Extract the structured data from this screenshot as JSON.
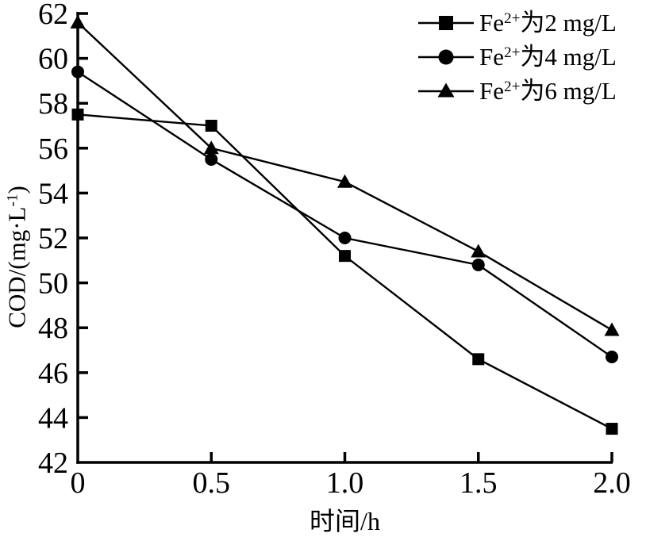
{
  "figure": {
    "background": "#ffffff",
    "ink_color": "#000000"
  },
  "axes": {
    "x_title": "时间/h",
    "y_title": {
      "pre": "COD/(mg·L",
      "sup": "-1",
      "post": ")"
    },
    "y_ticks": [
      "42",
      "44",
      "46",
      "48",
      "50",
      "52",
      "54",
      "56",
      "58",
      "60",
      "62"
    ],
    "x_ticks": [
      "0",
      "0.5",
      "1.0",
      "1.5",
      "2.0"
    ]
  },
  "legend": {
    "items": [
      {
        "pre": "Fe",
        "sup": "2+",
        "post": "为2 mg/L",
        "marker": "square"
      },
      {
        "pre": "Fe",
        "sup": "2+",
        "post": "为4 mg/L",
        "marker": "circle"
      },
      {
        "pre": "Fe",
        "sup": "2+",
        "post": "为6 mg/L",
        "marker": "triangle"
      }
    ]
  },
  "chart_data": {
    "type": "line",
    "title": "",
    "xlabel": "时间/h",
    "ylabel": "COD/(mg·L⁻¹)",
    "x": [
      0,
      0.5,
      1.0,
      1.5,
      2.0
    ],
    "xlim": [
      0,
      2.0
    ],
    "ylim": [
      42,
      62
    ],
    "y_tick_step": 2,
    "grid": false,
    "legend_position": "top-right",
    "series": [
      {
        "name": "Fe²⁺为2 mg/L",
        "marker": "square",
        "values": [
          57.5,
          57.0,
          51.2,
          46.6,
          43.5
        ]
      },
      {
        "name": "Fe²⁺为4 mg/L",
        "marker": "circle",
        "values": [
          59.4,
          55.5,
          52.0,
          50.8,
          46.7
        ]
      },
      {
        "name": "Fe²⁺为6 mg/L",
        "marker": "triangle",
        "values": [
          61.6,
          56.0,
          54.5,
          51.4,
          47.9
        ]
      }
    ]
  }
}
